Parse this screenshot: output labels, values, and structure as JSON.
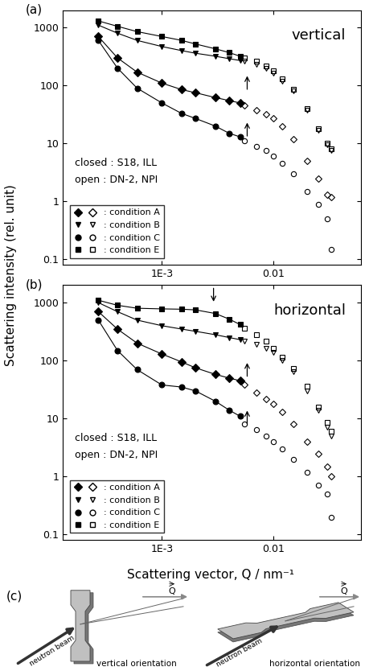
{
  "xlabel": "Scattering vector, Q / nm⁻¹",
  "ylabel": "Scattering intensity (rel. unit)",
  "chart_data": [
    {
      "type": "line",
      "label": "(a)",
      "title": "vertical",
      "notes": [
        "closed : S18, ILL",
        "open : DN-2, NPI"
      ],
      "log": true,
      "legend": "lower left",
      "xlim": [
        0.00013,
        0.06
      ],
      "ylim": [
        0.08,
        2000
      ],
      "xticks": [
        {
          "value": 0.001,
          "label": "1E-3"
        },
        0.01
      ],
      "yticks": [
        0.1,
        1,
        10,
        100,
        1000
      ],
      "arrows": [
        {
          "x": 0.0058,
          "y": 160,
          "direction": "up"
        },
        {
          "x": 0.0058,
          "y": 25,
          "direction": "up"
        }
      ],
      "series": [
        {
          "name": ": condition A",
          "marker": "diamond",
          "line_style": "solid",
          "color": "#000000",
          "x": [
            0.00027,
            0.0004,
            0.0006,
            0.001,
            0.0015,
            0.002,
            0.003,
            0.004,
            0.005
          ],
          "values": [
            700,
            300,
            170,
            110,
            85,
            75,
            62,
            55,
            50
          ]
        },
        {
          "name": ": condition A",
          "marker": "open diamond",
          "line_style": "none",
          "color": "#000000",
          "x": [
            0.0055,
            0.007,
            0.0085,
            0.01,
            0.012,
            0.015,
            0.02,
            0.025,
            0.03,
            0.033
          ],
          "values": [
            46,
            38,
            32,
            27,
            20,
            12,
            5,
            2.5,
            1.3,
            1.2
          ]
        },
        {
          "name": ": condition B",
          "marker": "triangle_down",
          "line_style": "solid",
          "color": "#000000",
          "x": [
            0.00027,
            0.0004,
            0.0006,
            0.001,
            0.0015,
            0.002,
            0.003,
            0.004,
            0.005
          ],
          "values": [
            1100,
            800,
            600,
            470,
            400,
            360,
            320,
            290,
            270
          ]
        },
        {
          "name": ": condition B",
          "marker": "open triangle_down",
          "line_style": "none",
          "color": "#000000",
          "x": [
            0.0055,
            0.007,
            0.0085,
            0.01,
            0.012,
            0.015,
            0.02,
            0.025,
            0.03,
            0.033
          ],
          "values": [
            260,
            230,
            200,
            165,
            120,
            80,
            38,
            17,
            9.5,
            7.5
          ]
        },
        {
          "name": ": condition C",
          "marker": "circle",
          "line_style": "solid",
          "color": "#000000",
          "x": [
            0.00027,
            0.0004,
            0.0006,
            0.001,
            0.0015,
            0.002,
            0.003,
            0.004,
            0.005
          ],
          "values": [
            600,
            200,
            90,
            50,
            33,
            27,
            20,
            15,
            13
          ]
        },
        {
          "name": ": condition C",
          "marker": "open circle",
          "line_style": "none",
          "color": "#000000",
          "x": [
            0.0055,
            0.007,
            0.0085,
            0.01,
            0.012,
            0.015,
            0.02,
            0.025,
            0.03,
            0.033
          ],
          "values": [
            11,
            9,
            7.5,
            6,
            4.5,
            3,
            1.5,
            0.9,
            0.5,
            0.15
          ]
        },
        {
          "name": ": condition E",
          "marker": "square",
          "line_style": "solid",
          "color": "#000000",
          "x": [
            0.00027,
            0.0004,
            0.0006,
            0.001,
            0.0015,
            0.002,
            0.003,
            0.004,
            0.005
          ],
          "values": [
            1300,
            1050,
            850,
            700,
            600,
            520,
            430,
            370,
            320
          ]
        },
        {
          "name": ": condition E",
          "marker": "open square",
          "line_style": "none",
          "color": "#000000",
          "x": [
            0.0055,
            0.007,
            0.0085,
            0.01,
            0.012,
            0.015,
            0.02,
            0.025,
            0.03,
            0.033
          ],
          "values": [
            300,
            260,
            220,
            180,
            130,
            85,
            40,
            18,
            10,
            8
          ]
        }
      ]
    },
    {
      "type": "line",
      "label": "(b)",
      "title": "horizontal",
      "notes": [
        "closed : S18, ILL",
        "open : DN-2, NPI"
      ],
      "log": true,
      "legend": "lower left",
      "xlim": [
        0.00013,
        0.06
      ],
      "ylim": [
        0.08,
        2000
      ],
      "xticks": [
        {
          "value": 0.001,
          "label": "1E-3"
        },
        0.01
      ],
      "yticks": [
        0.1,
        1,
        10,
        100,
        1000
      ],
      "arrows": [
        {
          "x": 0.0029,
          "y": 950,
          "direction": "down"
        },
        {
          "x": 0.0058,
          "y": 100,
          "direction": "up"
        },
        {
          "x": 0.0058,
          "y": 15,
          "direction": "up"
        }
      ],
      "series": [
        {
          "name": ": condition A",
          "marker": "diamond",
          "line_style": "solid",
          "color": "#000000",
          "x": [
            0.00027,
            0.0004,
            0.0006,
            0.001,
            0.0015,
            0.002,
            0.003,
            0.004,
            0.005
          ],
          "values": [
            700,
            350,
            200,
            130,
            95,
            75,
            58,
            50,
            45
          ]
        },
        {
          "name": ": condition A",
          "marker": "open diamond",
          "line_style": "none",
          "color": "#000000",
          "x": [
            0.0055,
            0.007,
            0.0085,
            0.01,
            0.012,
            0.015,
            0.02,
            0.025,
            0.03,
            0.033
          ],
          "values": [
            38,
            28,
            22,
            18,
            13,
            8,
            4,
            2.5,
            1.5,
            1
          ]
        },
        {
          "name": ": condition B",
          "marker": "triangle_down",
          "line_style": "solid",
          "color": "#000000",
          "x": [
            0.00027,
            0.0004,
            0.0006,
            0.001,
            0.0015,
            0.002,
            0.003,
            0.004,
            0.005
          ],
          "values": [
            1000,
            700,
            500,
            400,
            350,
            320,
            280,
            250,
            230
          ]
        },
        {
          "name": ": condition B",
          "marker": "open triangle_down",
          "line_style": "none",
          "color": "#000000",
          "x": [
            0.0055,
            0.007,
            0.0085,
            0.01,
            0.012,
            0.015,
            0.02,
            0.025,
            0.03,
            0.033
          ],
          "values": [
            220,
            190,
            160,
            140,
            100,
            65,
            30,
            14,
            7,
            5
          ]
        },
        {
          "name": ": condition C",
          "marker": "circle",
          "line_style": "solid",
          "color": "#000000",
          "x": [
            0.00027,
            0.0004,
            0.0006,
            0.001,
            0.0015,
            0.002,
            0.003,
            0.004,
            0.005
          ],
          "values": [
            500,
            150,
            70,
            38,
            35,
            30,
            20,
            14,
            11
          ]
        },
        {
          "name": ": condition C",
          "marker": "open circle",
          "line_style": "none",
          "color": "#000000",
          "x": [
            0.0055,
            0.007,
            0.0085,
            0.01,
            0.012,
            0.015,
            0.02,
            0.025,
            0.03,
            0.033
          ],
          "values": [
            8,
            6.5,
            5,
            4,
            3,
            2,
            1.2,
            0.7,
            0.5,
            0.2
          ]
        },
        {
          "name": ": condition E",
          "marker": "square",
          "line_style": "solid",
          "color": "#000000",
          "x": [
            0.00027,
            0.0004,
            0.0006,
            0.001,
            0.0015,
            0.002,
            0.003,
            0.004,
            0.005
          ],
          "values": [
            1100,
            900,
            800,
            780,
            770,
            750,
            650,
            520,
            420
          ]
        },
        {
          "name": ": condition E",
          "marker": "open square",
          "line_style": "none",
          "color": "#000000",
          "x": [
            0.0055,
            0.007,
            0.0085,
            0.01,
            0.012,
            0.015,
            0.02,
            0.025,
            0.03,
            0.033
          ],
          "values": [
            360,
            280,
            220,
            160,
            115,
            72,
            36,
            16,
            8.5,
            6
          ]
        }
      ]
    }
  ],
  "diagram": {
    "label": "(c)",
    "q_label": "Q",
    "beam_label": "neutron beam",
    "orientations": [
      "vertical orientation",
      "horizontal orientation"
    ]
  }
}
